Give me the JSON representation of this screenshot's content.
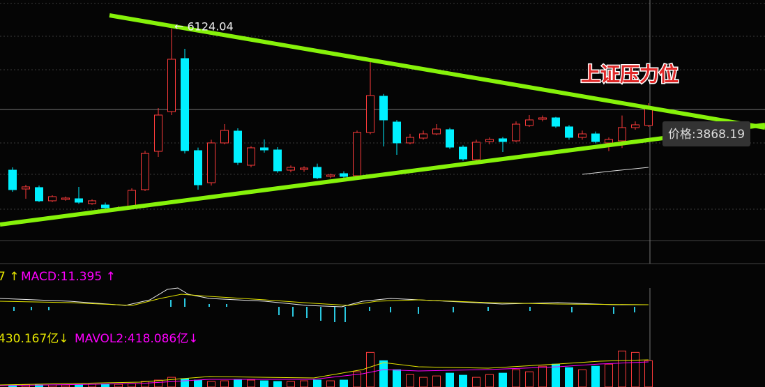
{
  "chart_data": {
    "type": "candlestick",
    "title": "上证压力位",
    "peak_label": "← 6124.04",
    "tooltip": "价格:3868.19",
    "ylim": [
      1500,
      6750
    ],
    "up_color": "#ff3b3b",
    "down_color": "#00f0ff",
    "ohlc": [
      [
        3037,
        3098,
        2565,
        2611
      ],
      [
        2626,
        2717,
        2413,
        2672
      ],
      [
        2657,
        2700,
        2340,
        2368
      ],
      [
        2368,
        2490,
        2340,
        2459
      ],
      [
        2398,
        2460,
        2370,
        2428
      ],
      [
        2413,
        2672,
        2300,
        2337
      ],
      [
        2307,
        2400,
        2280,
        2368
      ],
      [
        2276,
        2330,
        2190,
        2215
      ],
      [
        2185,
        2250,
        2150,
        2215
      ],
      [
        2231,
        2640,
        2200,
        2596
      ],
      [
        2611,
        3460,
        2580,
        3402
      ],
      [
        3448,
        4391,
        3326,
        4239
      ],
      [
        4315,
        6124.04,
        4239,
        5457
      ],
      [
        5472,
        5685,
        3400,
        3463
      ],
      [
        3463,
        3530,
        2611,
        2717
      ],
      [
        2763,
        3700,
        2700,
        3631
      ],
      [
        3631,
        4041,
        3600,
        3904
      ],
      [
        3889,
        3950,
        3150,
        3204
      ],
      [
        3144,
        3560,
        3100,
        3524
      ],
      [
        3524,
        3707,
        3420,
        3478
      ],
      [
        3478,
        3540,
        2980,
        3022
      ],
      [
        3037,
        3140,
        2990,
        3098
      ],
      [
        3052,
        3120,
        3000,
        3083
      ],
      [
        3098,
        3180,
        2840,
        2870
      ],
      [
        2900,
        2960,
        2860,
        2931
      ],
      [
        2961,
        3010,
        2870,
        2900
      ],
      [
        2915,
        3900,
        2880,
        3859
      ],
      [
        3859,
        5411,
        3820,
        4665
      ],
      [
        4650,
        4700,
        3554,
        4133
      ],
      [
        4087,
        4130,
        3372,
        3631
      ],
      [
        3631,
        3830,
        3600,
        3752
      ],
      [
        3737,
        3900,
        3700,
        3828
      ],
      [
        3828,
        4041,
        3800,
        3935
      ],
      [
        3920,
        3960,
        3500,
        3539
      ],
      [
        3539,
        3580,
        3240,
        3281
      ],
      [
        3265,
        3700,
        3240,
        3646
      ],
      [
        3661,
        3750,
        3600,
        3707
      ],
      [
        3722,
        3760,
        3433,
        3661
      ],
      [
        3676,
        4100,
        3650,
        4041
      ],
      [
        4011,
        4239,
        3980,
        4133
      ],
      [
        4148,
        4230,
        4100,
        4178
      ],
      [
        4178,
        4200,
        3960,
        3996
      ],
      [
        3981,
        4020,
        3700,
        3752
      ],
      [
        3752,
        3900,
        3700,
        3828
      ],
      [
        3828,
        3880,
        3620,
        3661
      ],
      [
        3631,
        3750,
        3450,
        3707
      ],
      [
        3676,
        4230,
        3520,
        3965
      ],
      [
        3965,
        4100,
        3920,
        4026
      ],
      [
        4011,
        4498,
        3980,
        4391
      ]
    ],
    "macd_dif": "7 ↑",
    "macd_label": "MACD:11.395 ↑",
    "macd_dif_color": "#e6e600",
    "macd_color": "#ff00ff",
    "mavol1_label": "430.167亿↓",
    "mavol2_label": "MAVOL2:418.086亿↓",
    "volume_lim": [
      0,
      720
    ],
    "volume": [
      39,
      39,
      39,
      39,
      39,
      39,
      52,
      52,
      52,
      65,
      104,
      130,
      182,
      156,
      130,
      104,
      117,
      130,
      130,
      117,
      104,
      104,
      117,
      130,
      117,
      130,
      286,
      650,
      494,
      325,
      234,
      182,
      208,
      260,
      221,
      182,
      234,
      260,
      325,
      286,
      390,
      429,
      364,
      325,
      390,
      429,
      676,
      650,
      494
    ]
  }
}
